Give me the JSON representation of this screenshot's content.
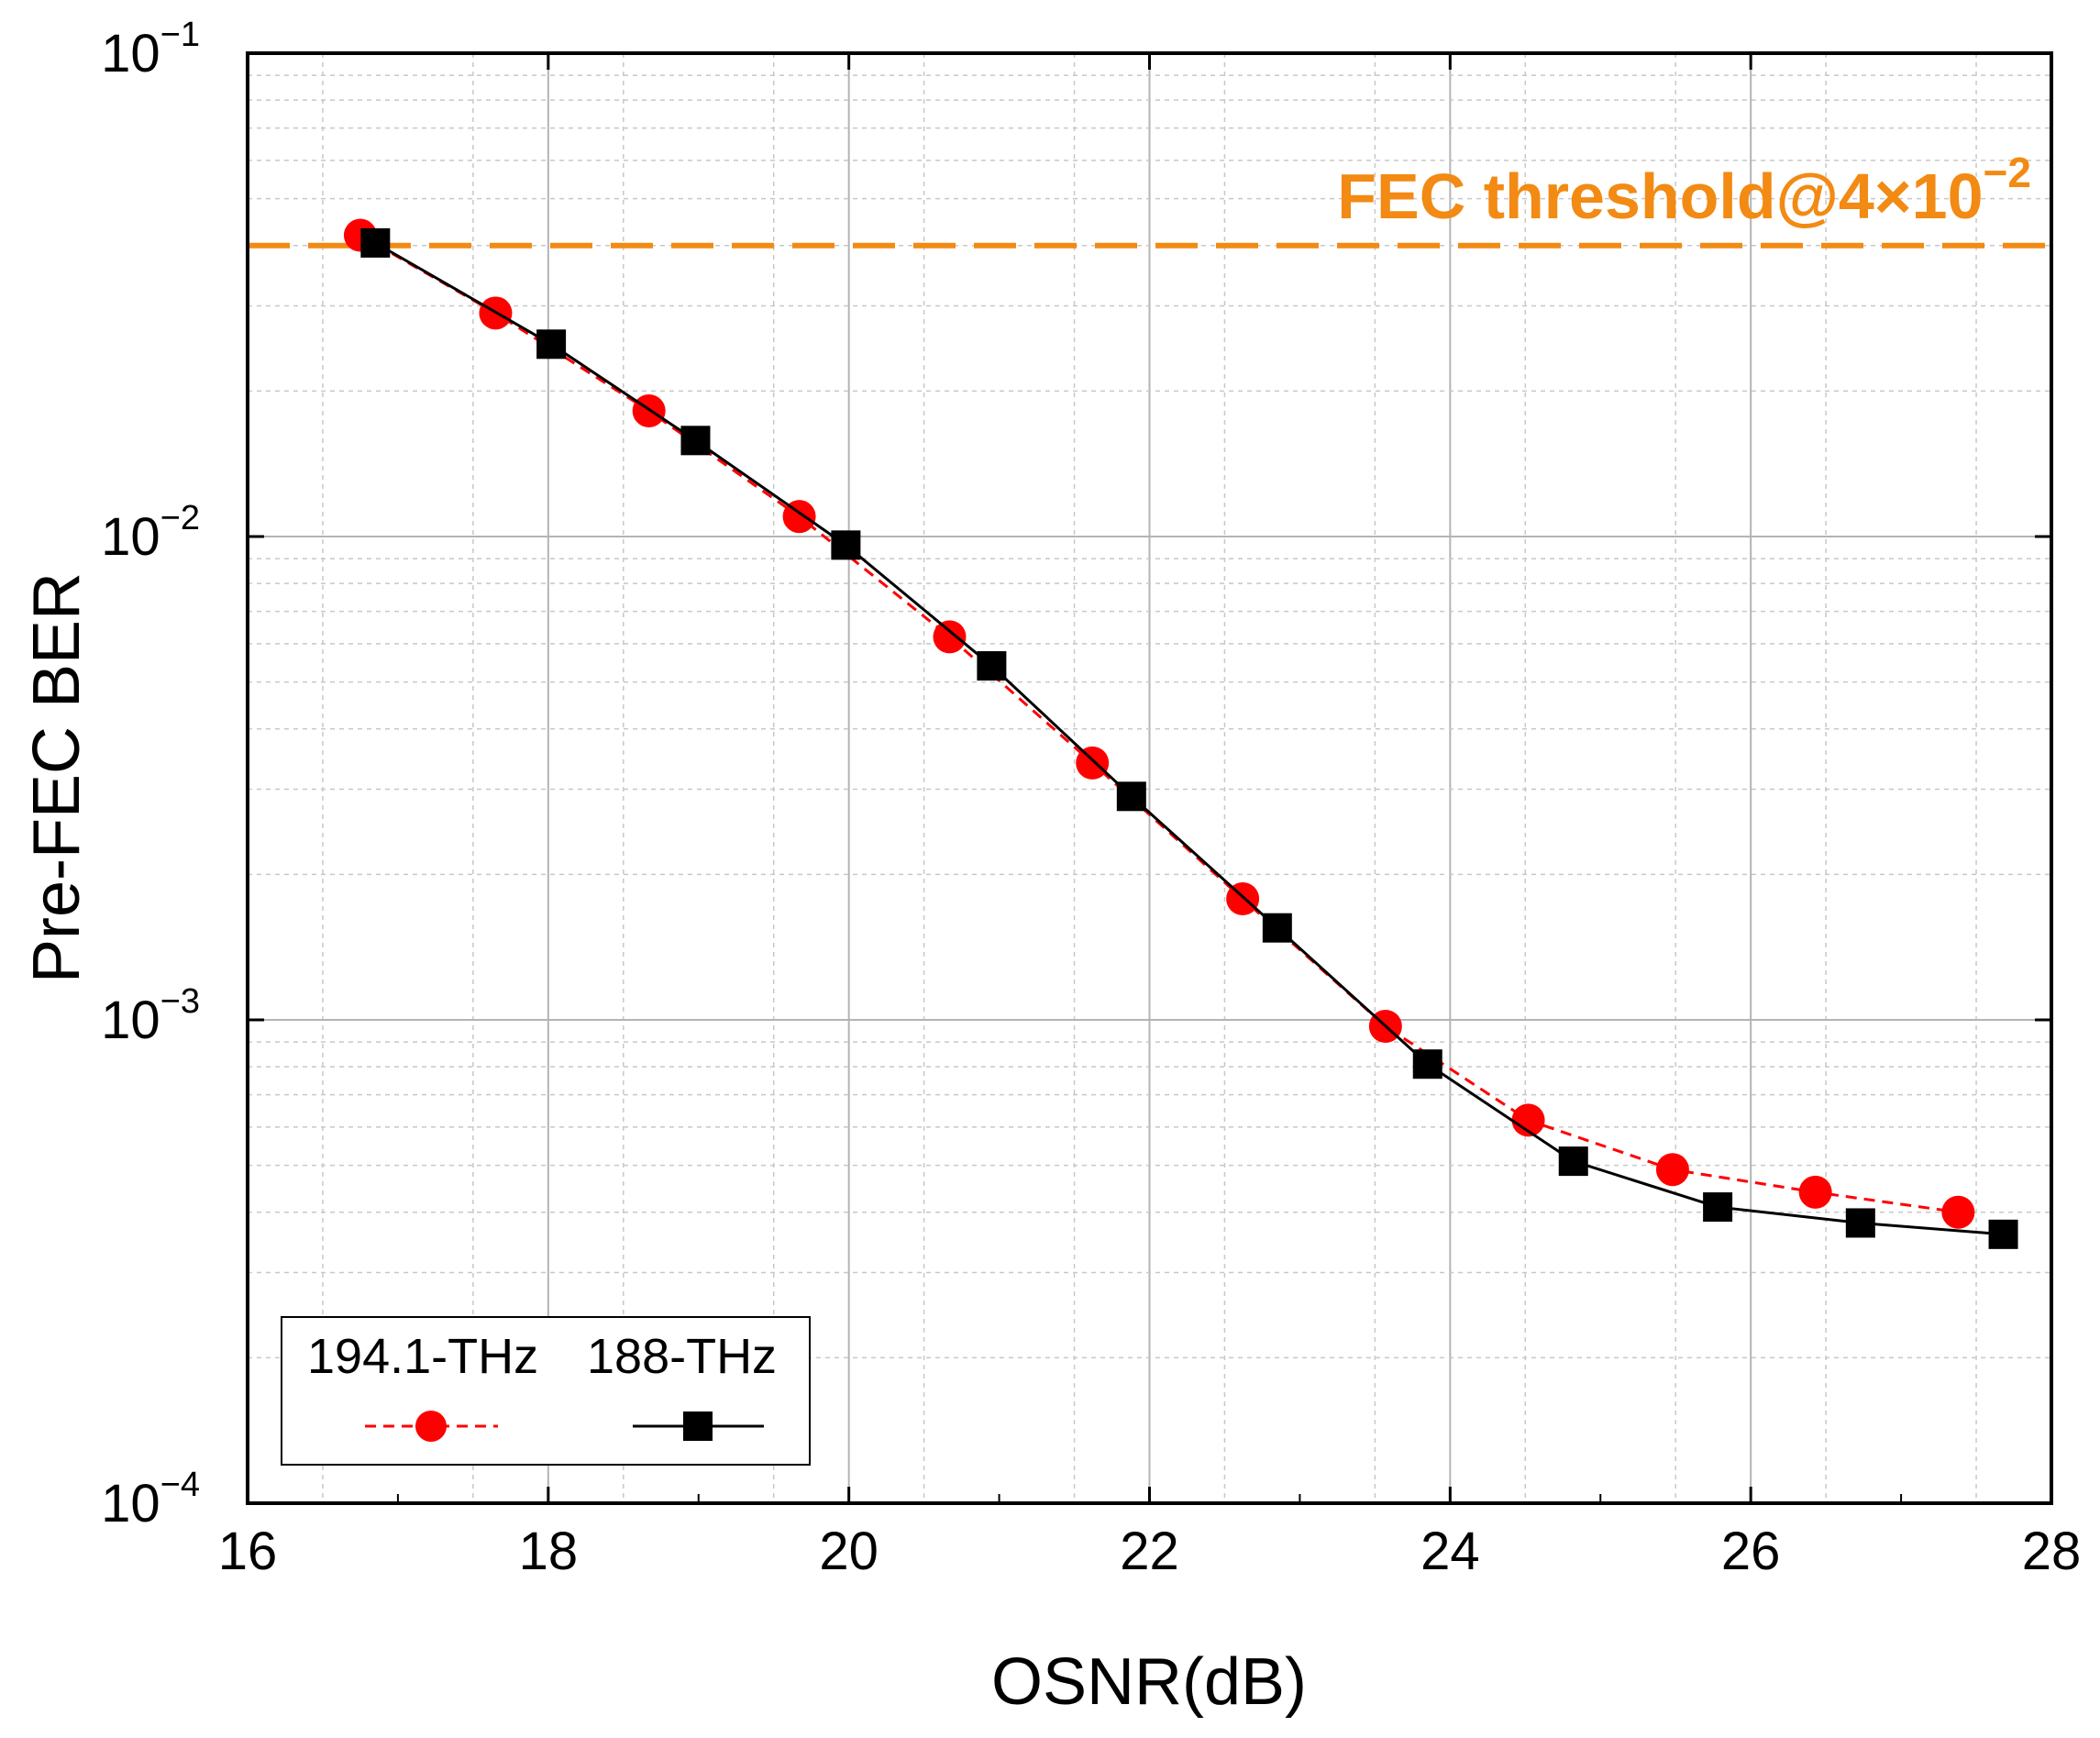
{
  "chart_data": {
    "type": "line",
    "title": "",
    "xlabel": "OSNR(dB)",
    "ylabel": "Pre-FEC BER",
    "xlim": [
      16,
      28
    ],
    "ylim": [
      0.0001,
      0.1
    ],
    "yscale": "log",
    "grid": true,
    "xticks": [
      16,
      18,
      20,
      22,
      24,
      26,
      28
    ],
    "xtick_labels": [
      "16",
      "18",
      "20",
      "22",
      "24",
      "26",
      "28"
    ],
    "yticks": [
      {
        "value": 0.1,
        "base": "10",
        "exp": "−1"
      },
      {
        "value": 0.01,
        "base": "10",
        "exp": "−2"
      },
      {
        "value": 0.001,
        "base": "10",
        "exp": "−3"
      },
      {
        "value": 0.0001,
        "base": "10",
        "exp": "−4"
      }
    ],
    "threshold": {
      "value": 0.04,
      "label": "FEC threshold@4×10",
      "label_exp": "−2",
      "color": "#f28a13"
    },
    "legend": {
      "placement": "bottom-left",
      "title_left": "194.1-THz",
      "title_right": "188-THz"
    },
    "series": [
      {
        "name": "194.1-THz",
        "color": "#ff0000",
        "line": "dashed",
        "marker": "circle",
        "x": [
          16.75,
          17.65,
          18.67,
          19.67,
          20.67,
          21.62,
          22.62,
          23.57,
          24.52,
          25.48,
          26.43,
          27.38
        ],
        "y": [
          0.042,
          0.029,
          0.0182,
          0.011,
          0.0062,
          0.0034,
          0.00178,
          0.00097,
          0.00062,
          0.00049,
          0.00044,
          0.0004
        ]
      },
      {
        "name": "188-THz",
        "color": "#000000",
        "line": "solid",
        "marker": "square",
        "x": [
          16.85,
          18.02,
          18.98,
          19.98,
          20.95,
          21.88,
          22.85,
          23.85,
          24.82,
          25.78,
          26.73,
          27.68
        ],
        "y": [
          0.0405,
          0.025,
          0.0158,
          0.0096,
          0.0054,
          0.0029,
          0.00155,
          0.00081,
          0.00051,
          0.00041,
          0.00038,
          0.00036
        ]
      }
    ]
  }
}
